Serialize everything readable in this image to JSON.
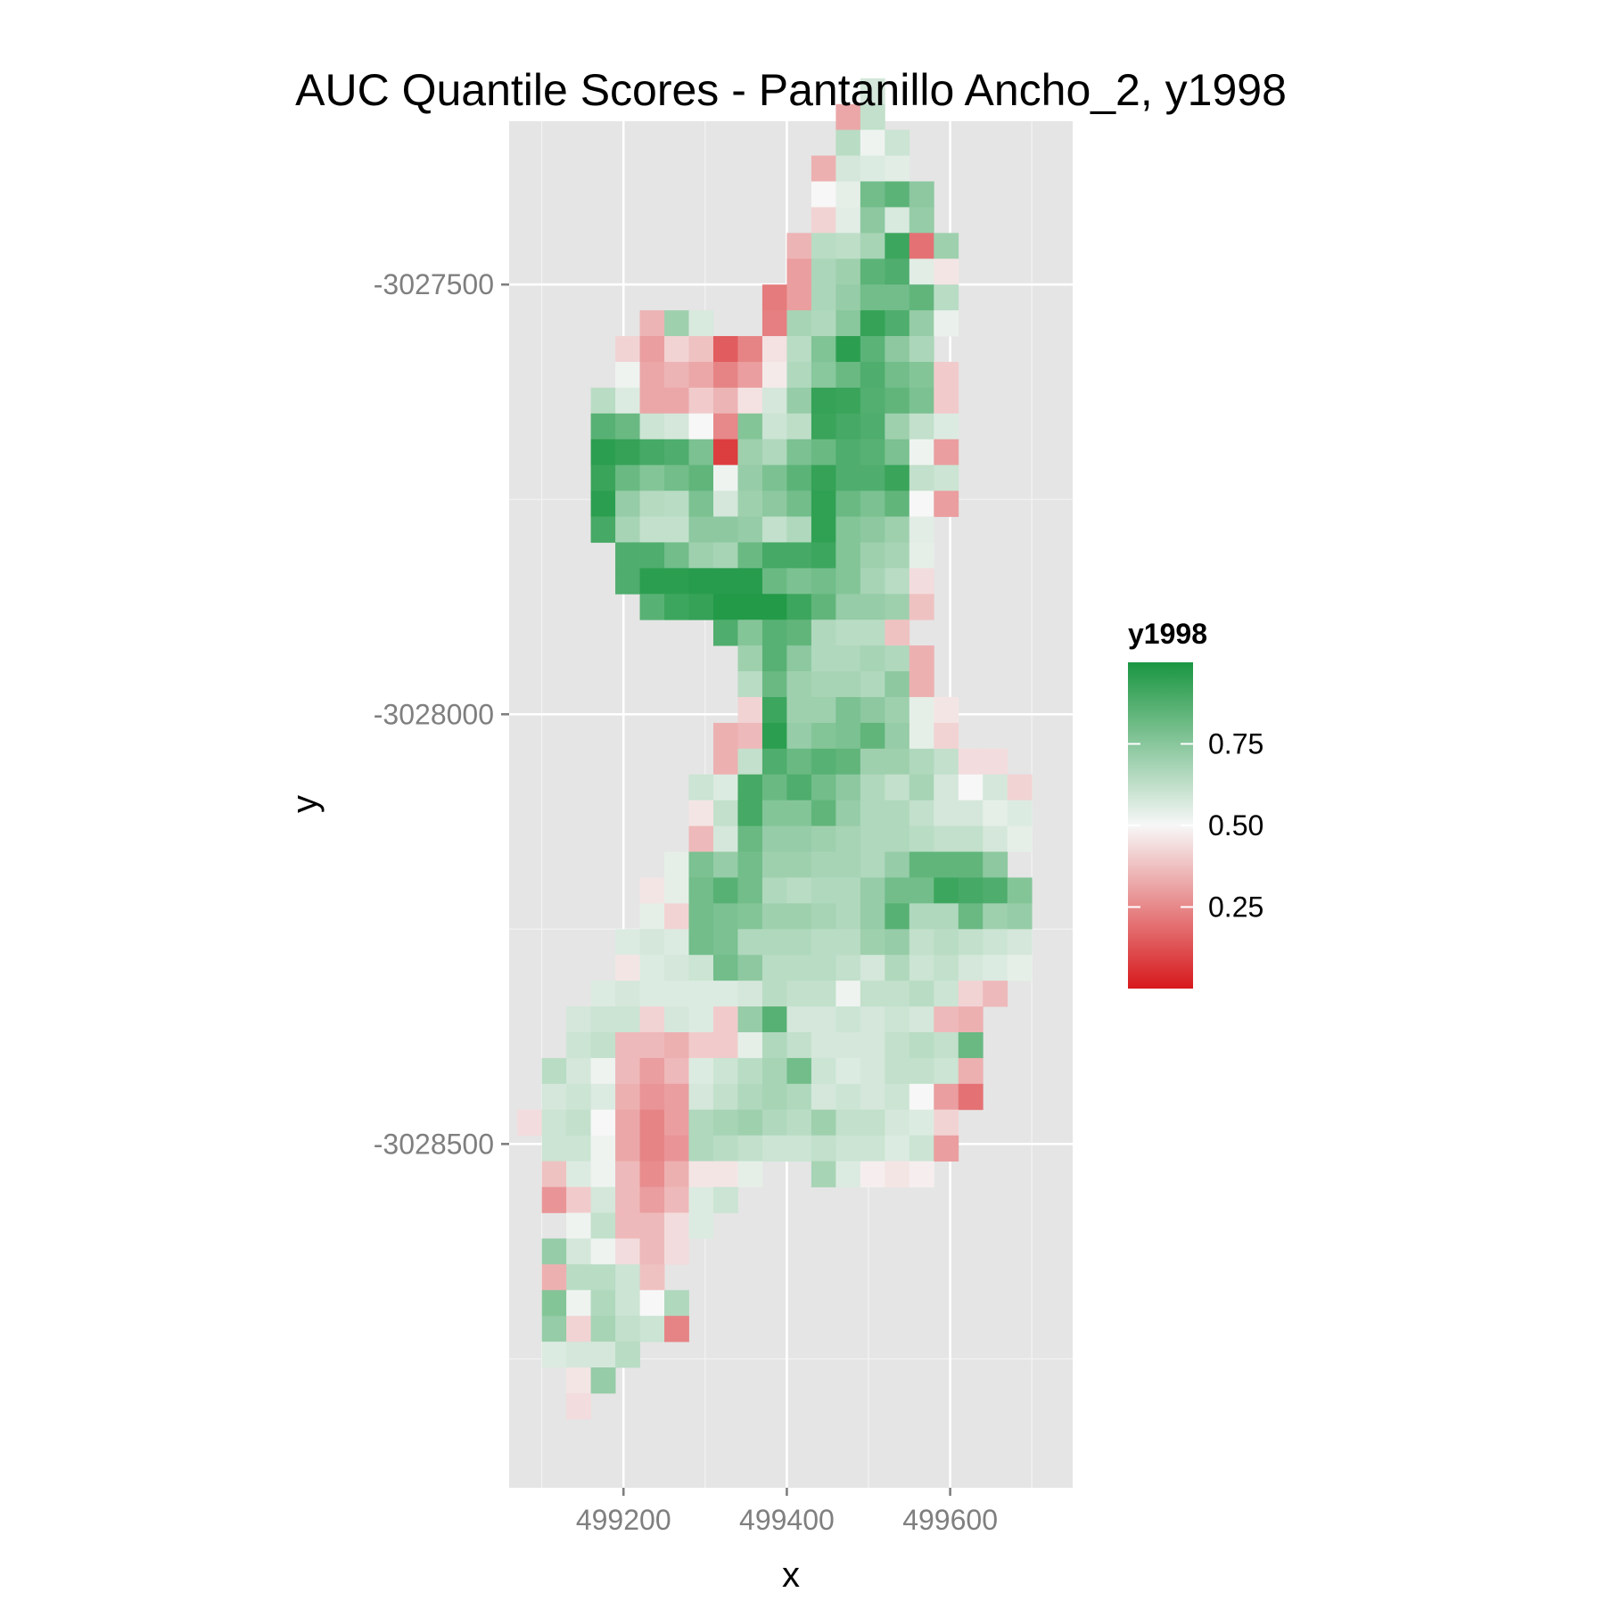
{
  "chart_data": {
    "type": "heatmap",
    "title": "AUC Quantile Scores - Pantanillo Ancho_2, y1998",
    "xlabel": "x",
    "ylabel": "y",
    "xlim": [
      499060,
      499750
    ],
    "ylim": [
      -3028900,
      -3027310
    ],
    "x_ticks": [
      499200,
      499400,
      499600
    ],
    "x_tick_labels": [
      "499200",
      "499400",
      "499600"
    ],
    "y_ticks": [
      -3027500,
      -3028000,
      -3028500
    ],
    "y_tick_labels": [
      "-3027500",
      "-3028000",
      "-3028500"
    ],
    "grid": true,
    "legend": {
      "title": "y1998",
      "position": "right",
      "range": [
        0,
        1
      ],
      "breaks": [
        0.25,
        0.5,
        0.75
      ],
      "break_labels": [
        "0.25",
        "0.50",
        "0.75"
      ],
      "colors": {
        "low": "#d7191c",
        "mid": "#f7f7f7",
        "high": "#1a9641"
      }
    },
    "cell_size": 30,
    "note_rows": "each row gives y (data units), x of first cell, and cell values left-to-right at 30 m spacing; null = no data",
    "rows": [
      {
        "y": -3027275,
        "x0": 499505,
        "v": [
          0.58
        ]
      },
      {
        "y": -3027305,
        "x0": 499475,
        "v": [
          0.32,
          0.62
        ]
      },
      {
        "y": -3027335,
        "x0": 499475,
        "v": [
          0.64,
          0.52,
          0.6
        ]
      },
      {
        "y": -3027365,
        "x0": 499445,
        "v": [
          0.34,
          0.58,
          0.56,
          0.55
        ]
      },
      {
        "y": -3027395,
        "x0": 499445,
        "v": [
          0.5,
          0.54,
          0.8,
          0.85,
          0.74
        ]
      },
      {
        "y": -3027425,
        "x0": 499445,
        "v": [
          0.42,
          0.55,
          0.74,
          0.57,
          0.72
        ]
      },
      {
        "y": -3027455,
        "x0": 499415,
        "v": [
          0.35,
          0.64,
          0.63,
          0.68,
          0.92,
          0.2,
          0.7
        ]
      },
      {
        "y": -3027485,
        "x0": 499415,
        "v": [
          0.3,
          0.67,
          0.7,
          0.85,
          0.88,
          0.55,
          0.46
        ]
      },
      {
        "y": -3027515,
        "x0": 499385,
        "v": [
          0.22,
          0.3,
          0.67,
          0.72,
          0.8,
          0.8,
          0.84,
          0.64
        ]
      },
      {
        "y": -3027545,
        "x0": 499235,
        "v": [
          0.35,
          0.7,
          0.57,
          null,
          null,
          0.23,
          0.68,
          0.66,
          0.75,
          0.94,
          0.88,
          0.72,
          0.53
        ]
      },
      {
        "y": -3027575,
        "x0": 499205,
        "v": [
          0.42,
          0.3,
          0.42,
          0.38,
          0.15,
          0.24,
          0.45,
          0.64,
          0.77,
          0.96,
          0.85,
          0.74,
          0.67
        ]
      },
      {
        "y": -3027605,
        "x0": 499205,
        "v": [
          0.52,
          0.32,
          0.35,
          0.32,
          0.24,
          0.3,
          0.47,
          0.66,
          0.75,
          0.82,
          0.88,
          0.8,
          0.76,
          0.4
        ]
      },
      {
        "y": -3027635,
        "x0": 499175,
        "v": [
          0.64,
          0.56,
          0.32,
          0.32,
          0.4,
          0.35,
          0.45,
          0.58,
          0.72,
          0.94,
          0.93,
          0.87,
          0.84,
          0.78,
          0.4
        ]
      },
      {
        "y": -3027665,
        "x0": 499175,
        "v": [
          0.86,
          0.82,
          0.6,
          0.58,
          0.5,
          0.25,
          0.76,
          0.6,
          0.63,
          0.93,
          0.9,
          0.88,
          0.7,
          0.62,
          0.56
        ]
      },
      {
        "y": -3027695,
        "x0": 499175,
        "v": [
          0.96,
          0.94,
          0.9,
          0.88,
          0.78,
          0.08,
          0.7,
          0.66,
          0.78,
          0.82,
          0.88,
          0.86,
          0.78,
          0.52,
          0.3
        ]
      },
      {
        "y": -3027725,
        "x0": 499175,
        "v": [
          0.93,
          0.82,
          0.76,
          0.8,
          0.84,
          0.52,
          0.72,
          0.78,
          0.85,
          0.94,
          0.88,
          0.88,
          0.93,
          0.62,
          0.6
        ]
      },
      {
        "y": -3027755,
        "x0": 499175,
        "v": [
          0.96,
          0.72,
          0.65,
          0.64,
          0.78,
          0.58,
          0.7,
          0.74,
          0.8,
          0.95,
          0.82,
          0.78,
          0.84,
          0.5,
          0.3
        ]
      },
      {
        "y": -3027785,
        "x0": 499175,
        "v": [
          0.9,
          0.68,
          0.62,
          0.62,
          0.74,
          0.74,
          0.72,
          0.62,
          0.66,
          0.95,
          0.76,
          0.74,
          0.7,
          0.55
        ]
      },
      {
        "y": -3027815,
        "x0": 499205,
        "v": [
          0.88,
          0.88,
          0.8,
          0.7,
          0.68,
          0.82,
          0.9,
          0.9,
          0.92,
          0.76,
          0.7,
          0.68,
          0.54
        ]
      },
      {
        "y": -3027845,
        "x0": 499205,
        "v": [
          0.88,
          0.96,
          0.96,
          0.97,
          0.97,
          0.97,
          0.82,
          0.78,
          0.8,
          0.76,
          0.68,
          0.64,
          0.44
        ]
      },
      {
        "y": -3027875,
        "x0": 499235,
        "v": [
          0.86,
          0.92,
          0.94,
          0.98,
          0.98,
          0.98,
          0.92,
          0.84,
          0.72,
          0.72,
          0.7,
          0.38
        ]
      },
      {
        "y": -3027905,
        "x0": 499325,
        "v": [
          0.88,
          0.76,
          0.86,
          0.84,
          0.66,
          0.64,
          0.64,
          0.38
        ]
      },
      {
        "y": -3027935,
        "x0": 499355,
        "v": [
          0.7,
          0.86,
          0.74,
          0.66,
          0.66,
          0.68,
          0.66,
          0.34
        ]
      },
      {
        "y": -3027965,
        "x0": 499355,
        "v": [
          0.64,
          0.82,
          0.7,
          0.68,
          0.68,
          0.66,
          0.74,
          0.34
        ]
      },
      {
        "y": -3027995,
        "x0": 499355,
        "v": [
          0.42,
          0.92,
          0.7,
          0.7,
          0.78,
          0.74,
          0.7,
          0.54,
          0.46
        ]
      },
      {
        "y": -3028025,
        "x0": 499325,
        "v": [
          0.34,
          0.36,
          0.96,
          0.72,
          0.76,
          0.78,
          0.84,
          0.72,
          0.54,
          0.42
        ]
      },
      {
        "y": -3028055,
        "x0": 499325,
        "v": [
          0.34,
          0.62,
          0.88,
          0.82,
          0.86,
          0.84,
          0.7,
          0.7,
          0.66,
          0.62,
          0.44,
          0.44
        ]
      },
      {
        "y": -3028085,
        "x0": 499295,
        "v": [
          0.6,
          0.56,
          0.9,
          0.82,
          0.88,
          0.8,
          0.74,
          0.66,
          0.62,
          0.68,
          0.58,
          0.5,
          0.58,
          0.42
        ]
      },
      {
        "y": -3028115,
        "x0": 499295,
        "v": [
          0.46,
          0.62,
          0.9,
          0.76,
          0.76,
          0.84,
          0.72,
          0.66,
          0.66,
          0.62,
          0.58,
          0.58,
          0.54,
          0.56
        ]
      },
      {
        "y": -3028145,
        "x0": 499295,
        "v": [
          0.36,
          0.58,
          0.82,
          0.72,
          0.72,
          0.7,
          0.68,
          0.66,
          0.66,
          0.64,
          0.62,
          0.62,
          0.58,
          0.54
        ]
      },
      {
        "y": -3028175,
        "x0": 499265,
        "v": [
          0.54,
          0.78,
          0.72,
          0.8,
          0.7,
          0.7,
          0.68,
          0.68,
          0.66,
          0.72,
          0.84,
          0.84,
          0.84,
          0.74
        ]
      },
      {
        "y": -3028205,
        "x0": 499235,
        "v": [
          0.46,
          0.54,
          0.8,
          0.86,
          0.8,
          0.66,
          0.64,
          0.66,
          0.66,
          0.72,
          0.8,
          0.8,
          0.92,
          0.9,
          0.88,
          0.76
        ]
      },
      {
        "y": -3028235,
        "x0": 499235,
        "v": [
          0.54,
          0.42,
          0.8,
          0.78,
          0.76,
          0.7,
          0.7,
          0.68,
          0.66,
          0.72,
          0.86,
          0.66,
          0.66,
          0.82,
          0.7,
          0.72
        ]
      },
      {
        "y": -3028265,
        "x0": 499205,
        "v": [
          0.56,
          0.58,
          0.56,
          0.8,
          0.78,
          0.66,
          0.66,
          0.66,
          0.64,
          0.64,
          0.7,
          0.72,
          0.62,
          0.64,
          0.62,
          0.6,
          0.58
        ]
      },
      {
        "y": -3028295,
        "x0": 499205,
        "v": [
          0.46,
          0.56,
          0.58,
          0.6,
          0.8,
          0.74,
          0.64,
          0.64,
          0.64,
          0.62,
          0.58,
          0.66,
          0.6,
          0.62,
          0.58,
          0.56,
          0.54
        ]
      },
      {
        "y": -3028325,
        "x0": 499175,
        "v": [
          0.56,
          0.58,
          0.56,
          0.56,
          0.56,
          0.56,
          0.58,
          0.64,
          0.62,
          0.62,
          0.52,
          0.62,
          0.62,
          0.64,
          0.6,
          0.42,
          0.36
        ]
      },
      {
        "y": -3028355,
        "x0": 499145,
        "v": [
          0.58,
          0.6,
          0.6,
          0.42,
          0.58,
          0.56,
          0.4,
          0.72,
          0.86,
          0.58,
          0.58,
          0.6,
          0.58,
          0.6,
          0.58,
          0.36,
          0.34
        ]
      },
      {
        "y": -3028385,
        "x0": 499145,
        "v": [
          0.6,
          0.62,
          0.36,
          0.36,
          0.34,
          0.4,
          0.4,
          0.54,
          0.66,
          0.62,
          0.58,
          0.58,
          0.58,
          0.62,
          0.64,
          0.62,
          0.82
        ]
      },
      {
        "y": -3028415,
        "x0": 499115,
        "v": [
          0.64,
          0.58,
          0.52,
          0.36,
          0.3,
          0.36,
          0.56,
          0.6,
          0.64,
          0.68,
          0.8,
          0.6,
          0.56,
          0.58,
          0.62,
          0.62,
          0.6,
          0.34
        ]
      },
      {
        "y": -3028445,
        "x0": 499115,
        "v": [
          0.58,
          0.6,
          0.56,
          0.34,
          0.28,
          0.3,
          0.58,
          0.62,
          0.66,
          0.68,
          0.66,
          0.58,
          0.6,
          0.58,
          0.6,
          0.5,
          0.3,
          0.2
        ]
      },
      {
        "y": -3028475,
        "x0": 499085,
        "v": [
          0.44,
          0.6,
          0.62,
          0.5,
          0.32,
          0.24,
          0.3,
          0.66,
          0.68,
          0.7,
          0.66,
          0.64,
          0.7,
          0.62,
          0.62,
          0.58,
          0.56,
          0.42
        ]
      },
      {
        "y": -3028505,
        "x0": 499115,
        "v": [
          0.6,
          0.6,
          0.52,
          0.32,
          0.24,
          0.28,
          0.66,
          0.64,
          0.62,
          0.6,
          0.6,
          0.62,
          0.6,
          0.6,
          0.56,
          0.6,
          0.3
        ]
      },
      {
        "y": -3028535,
        "x0": 499115,
        "v": [
          0.38,
          0.56,
          0.52,
          0.36,
          0.26,
          0.34,
          0.46,
          0.46,
          0.54,
          null,
          null,
          0.68,
          0.56,
          0.48,
          0.46,
          0.48
        ]
      },
      {
        "y": -3028565,
        "x0": 499115,
        "v": [
          0.28,
          0.4,
          0.58,
          0.36,
          0.3,
          0.36,
          0.56,
          0.6
        ]
      },
      {
        "y": -3028595,
        "x0": 499145,
        "v": [
          0.52,
          0.62,
          0.36,
          0.36,
          0.44,
          0.56
        ]
      },
      {
        "y": -3028625,
        "x0": 499115,
        "v": [
          0.72,
          0.58,
          0.52,
          0.44,
          0.36,
          0.44
        ]
      },
      {
        "y": -3028655,
        "x0": 499115,
        "v": [
          0.34,
          0.64,
          0.64,
          0.6,
          0.38
        ]
      },
      {
        "y": -3028685,
        "x0": 499115,
        "v": [
          0.76,
          0.52,
          0.66,
          0.6,
          0.5,
          0.66
        ]
      },
      {
        "y": -3028715,
        "x0": 499115,
        "v": [
          0.72,
          0.42,
          0.68,
          0.62,
          0.6,
          0.24
        ]
      },
      {
        "y": -3028745,
        "x0": 499115,
        "v": [
          0.56,
          0.58,
          0.58,
          0.64
        ]
      },
      {
        "y": -3028775,
        "x0": 499145,
        "v": [
          0.46,
          0.72
        ]
      },
      {
        "y": -3028805,
        "x0": 499145,
        "v": [
          0.44
        ]
      }
    ]
  }
}
